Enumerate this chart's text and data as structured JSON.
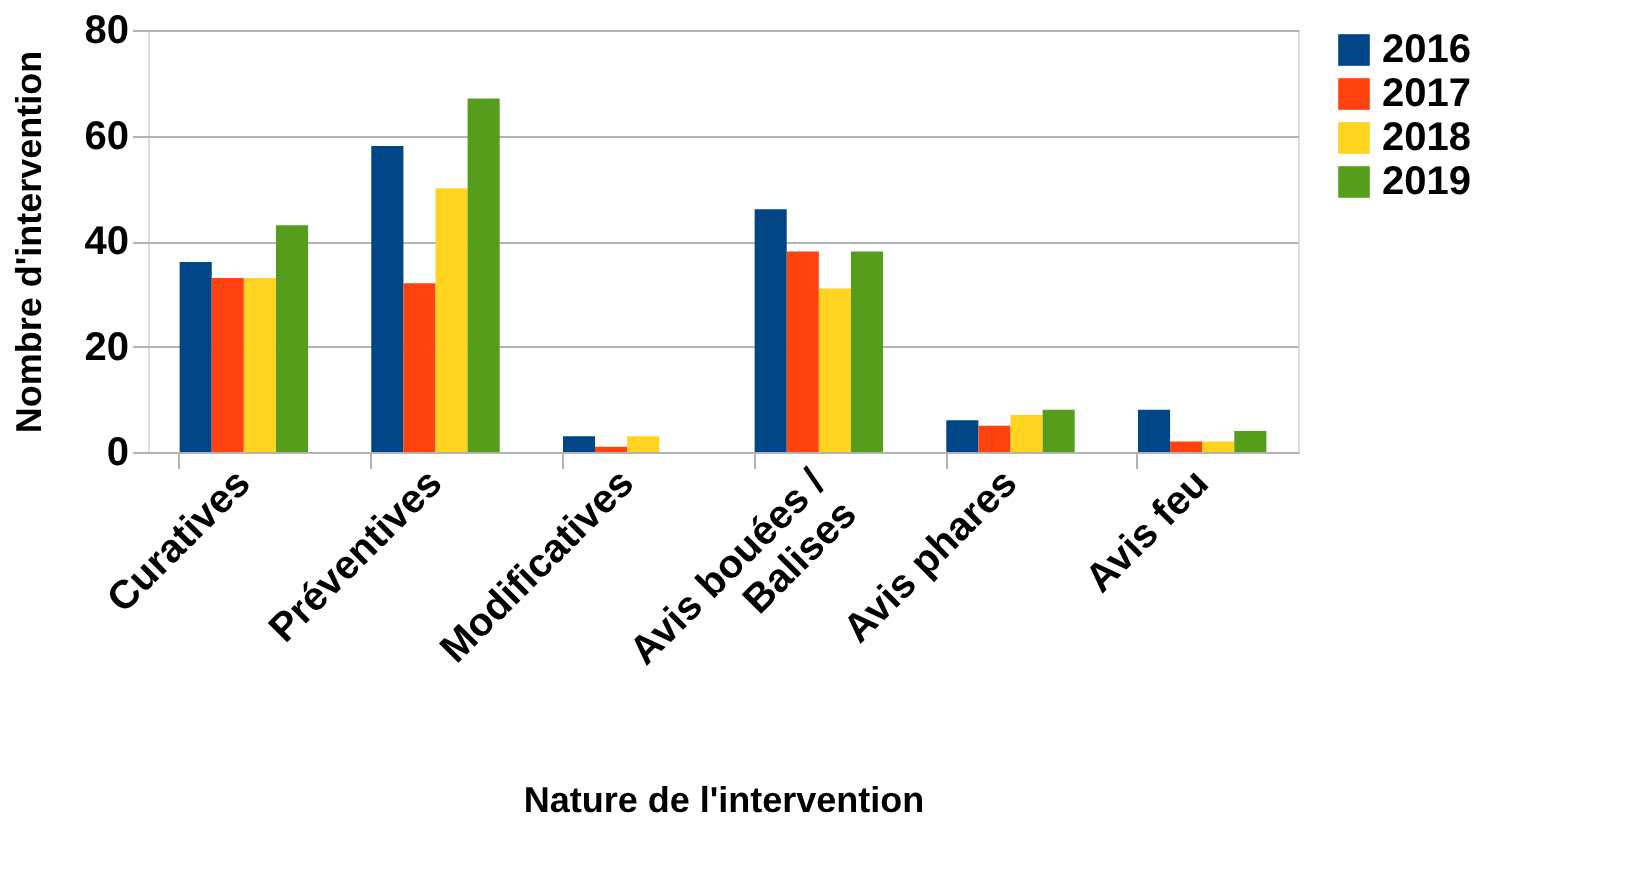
{
  "chart_data": {
    "type": "bar",
    "xlabel": "Nature de l'intervention",
    "ylabel": "Nombre d'intervention",
    "categories": [
      "Curatives",
      "Préventives",
      "Modificatives",
      "Avis bouées /\nBalises",
      "Avis phares",
      "Avis feu"
    ],
    "series": [
      {
        "name": "2016",
        "color": "#004586",
        "values": [
          36,
          58,
          3,
          46,
          6,
          8
        ]
      },
      {
        "name": "2017",
        "color": "#ff420e",
        "values": [
          33,
          32,
          1,
          38,
          5,
          2
        ]
      },
      {
        "name": "2018",
        "color": "#ffd320",
        "values": [
          33,
          50,
          3,
          31,
          7,
          2
        ]
      },
      {
        "name": "2019",
        "color": "#579d1c",
        "values": [
          43,
          67,
          0,
          38,
          8,
          4
        ]
      }
    ],
    "ylim": [
      0,
      80
    ],
    "yticks": [
      0,
      20,
      40,
      60,
      80
    ],
    "grid": "y",
    "legend": "right"
  }
}
